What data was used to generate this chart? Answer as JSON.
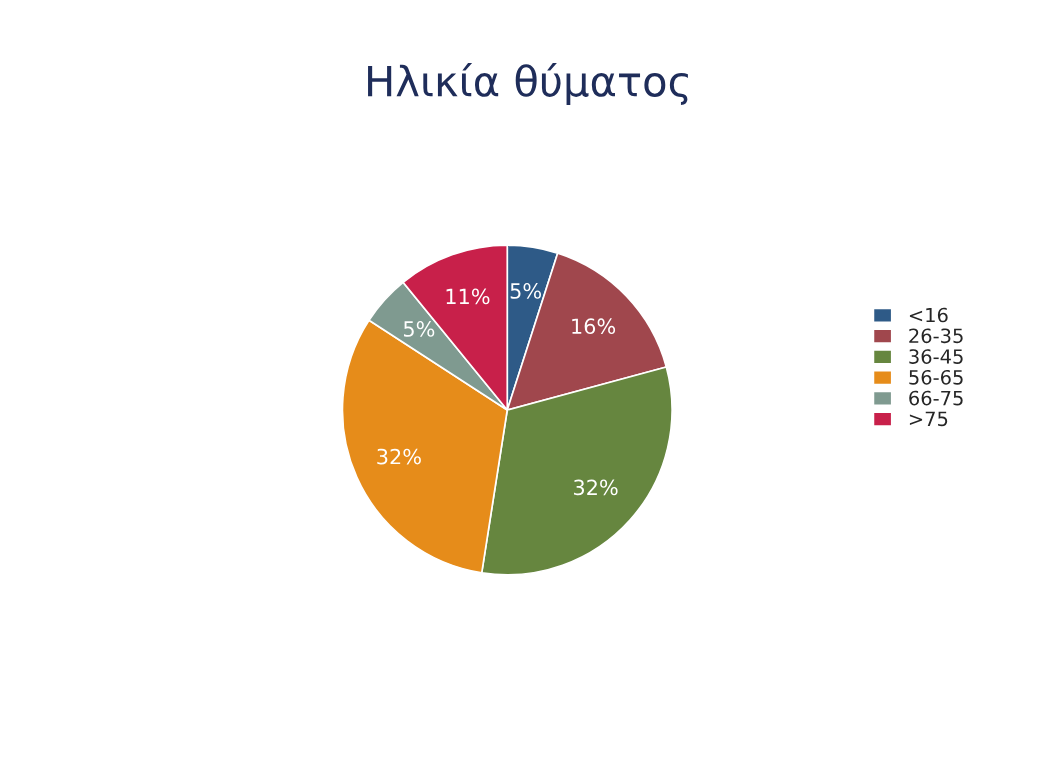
{
  "chart_data": {
    "type": "pie",
    "title": "Ηλικία θύματος",
    "categories": [
      "<16",
      "26-35",
      "36-45",
      "56-65",
      "66-75",
      ">75"
    ],
    "values": [
      5,
      16,
      32,
      32,
      5,
      11
    ],
    "colors": [
      "#2e5a87",
      "#a0474d",
      "#66863f",
      "#e68c1a",
      "#7f9a90",
      "#c8204a"
    ],
    "value_labels": [
      "5%",
      "16%",
      "32%",
      "32%",
      "5%",
      "11%"
    ],
    "legend": "right"
  }
}
